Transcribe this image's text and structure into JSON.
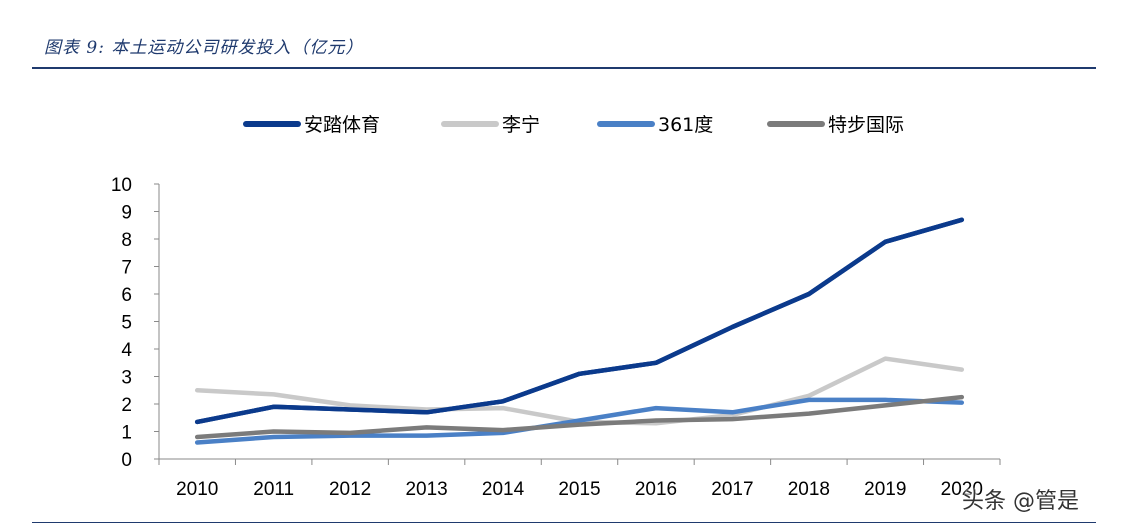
{
  "title": "图表 9:  本土运动公司研发投入（亿元）",
  "watermark": "头条 @管是",
  "chart_data": {
    "type": "line",
    "title": "图表 9:  本土运动公司研发投入（亿元）",
    "xlabel": "",
    "ylabel": "",
    "x": [
      "2010",
      "2011",
      "2012",
      "2013",
      "2014",
      "2015",
      "2016",
      "2017",
      "2018",
      "2019",
      "2020"
    ],
    "ylim": [
      0,
      10
    ],
    "yticks": [
      0,
      1,
      2,
      3,
      4,
      5,
      6,
      7,
      8,
      9,
      10
    ],
    "grid": false,
    "legend": "top",
    "series": [
      {
        "name": "安踏体育",
        "color": "#0b3a8c",
        "values": [
          1.35,
          1.9,
          1.8,
          1.7,
          2.1,
          3.1,
          3.5,
          4.8,
          6.0,
          7.9,
          8.7
        ]
      },
      {
        "name": "李宁",
        "color": "#c9c9c9",
        "values": [
          2.5,
          2.35,
          1.95,
          1.8,
          1.85,
          1.35,
          1.3,
          1.6,
          2.3,
          3.65,
          3.25
        ]
      },
      {
        "name": "361度",
        "color": "#4a80c6",
        "values": [
          0.6,
          0.8,
          0.85,
          0.85,
          0.95,
          1.4,
          1.85,
          1.7,
          2.15,
          2.15,
          2.05
        ]
      },
      {
        "name": "特步国际",
        "color": "#7b7b7b",
        "values": [
          0.8,
          1.0,
          0.95,
          1.15,
          1.05,
          1.25,
          1.4,
          1.45,
          1.65,
          1.95,
          2.25
        ]
      }
    ]
  }
}
